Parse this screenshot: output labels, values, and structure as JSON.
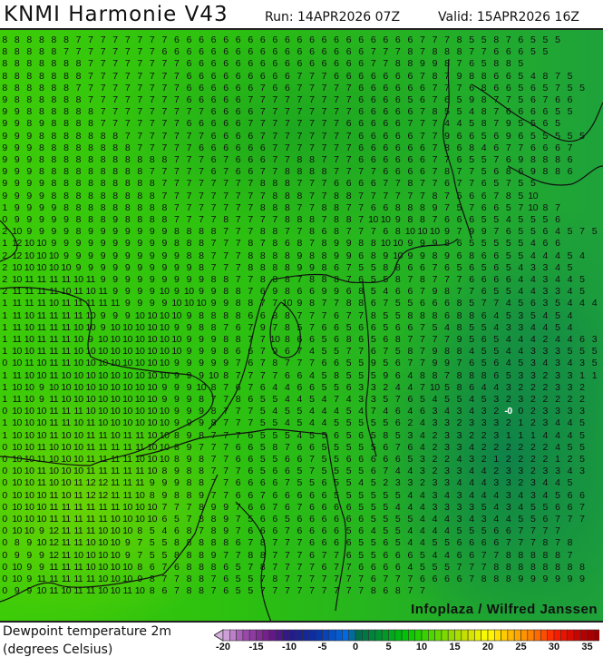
{
  "header": {
    "title": "KNMI Harmonie V43",
    "run": "Run: 14APR2026 07Z",
    "valid": "Valid: 15APR2026 16Z"
  },
  "map": {
    "watermark": "Infoplaza / Wilfred Janssen",
    "highlighted_value": "-0",
    "grid_rows": [
      "8 8 8 8 8 8 7 7 7 7 7 7 7 7 6 6 6 6 6 6 6 6 6 6 6 6 6 6 6 6 6 6 6 6 7 7 7 8 5 5 8 7 6 5 5 5",
      "8 8 8 8 8 7 7 7 7 7 7 7 7 6 6 6 6 6 6 6 6 6 6 6 6 6 6 6 6 6 7 7 7 8 7 8 8 8 7 7 6 6 6 5 5",
      "8 8 8 8 8 8 8 7 7 7 7 7 7 7 7 6 6 6 6 6 6 6 6 6 6 6 6 6 6 6 7 7 8 8 9 9 8 7 6 5 8 8 5",
      "8 8 8 8 8 8 8 7 7 7 7 7 7 7 7 6 6 6 6 6 6 6 6 6 7 7 7 6 6 6 6 6 6 6 7 8 7 9 8 8 6 6 5 4 8 7 5",
      "8 8 8 8 8 8 7 7 7 7 7 7 7 7 7 6 6 6 6 6 6 7 6 6 7 7 7 7 7 6 6 6 6 6 6 7 7 7 6 8 6 6 5 6 5 7 5 5",
      "9 8 8 8 8 8 8 7 7 7 7 7 7 7 7 6 6 6 6 6 7 7 7 7 7 7 7 7 7 6 6 6 6 5 6 7 6 5 9 8 7 7 5 6 7 6 6",
      "9 9 8 8 8 8 8 8 7 7 7 7 7 7 7 7 7 6 6 6 6 7 7 7 7 7 7 7 7 6 6 6 6 6 7 8 5 5 4 8 7 6 6 6 6 5 5",
      "9 9 8 9 8 8 8 8 7 7 7 7 7 7 7 6 6 6 6 6 7 7 7 7 7 7 7 7 6 6 6 6 6 7 7 7 4 4 5 8 7 9 5 5 6 5",
      "9 9 9 8 8 8 8 8 8 8 7 7 7 7 7 7 7 6 6 6 6 7 7 7 7 7 7 7 7 6 6 6 6 6 7 7 9 6 6 5 6 9 6 5 5 5 5 5",
      "9 9 9 8 8 8 8 8 8 8 8 7 7 7 7 7 6 6 6 6 6 6 7 7 7 7 7 7 7 6 6 6 6 6 6 7 8 6 8 4 6 7 7 6 6 6 7",
      "9 9 9 8 8 8 8 8 8 8 8 8 8 8 7 7 7 6 7 6 6 6 7 7 8 8 7 7 7 6 6 6 6 6 6 7 7 6 5 5 7 6 9 8 8 8 6",
      "9 9 9 8 8 8 8 8 8 8 8 8 7 7 7 7 7 6 7 6 6 7 7 8 8 8 8 7 7 7 7 6 6 6 6 7 8 7 7 5 6 8 6 9 8 8 6",
      "9 9 9 9 8 8 8 8 8 8 8 8 8 7 7 7 7 7 7 7 7 8 8 8 7 7 7 6 6 6 6 7 7 8 7 7 6 7 7 6 5 7 5 5",
      "9 9 9 9 8 8 8 8 8 8 8 8 8 7 7 7 7 7 7 7 7 7 8 8 8 7 7 8 8 7 7 7 7 7 7 8 7 5 6 6 7 8 5 10",
      "1 9 9 9 9 8 8 8 8 8 8 8 8 8 7 7 7 7 7 7 7 8 8 8 7 7 8 8 7 7 6 6 8 8 8 9 7 5 7 6 6 5 7 10 8 7",
      "0 9 9 9 9 9 8 8 8 9 8 8 8 8 7 7 7 7 8 7 7 7 7 8 8 8 7 8 8 7 10 10 9 8 8 7 6 6 6 5 5 4 5 5 5 6",
      "2 10 9 9 9 9 8 9 9 9 9 9 9 9 8 8 8 8 7 7 7 8 8 7 7 8 6 8 7 7 7 6 8 10 10 10 9 7 9 9 7 6 5 5 6 4 5 7 5 5",
      "1 12 10 10 9 9 9 9 9 9 9 9 9 9 8 8 8 7 7 7 8 7 8 6 8 7 8 9 9 8 8 10 10 9 9 9 8 6 5 5 5 5 5 4 6 6",
      "2 12 10 10 10 9 9 9 9 9 9 9 9 9 9 8 8 7 7 7 8 8 8 8 9 8 8 9 9 6 8 9 10 9 9 8 9 6 8 6 6 5 5 4 4 4 5 4",
      "2 10 10 10 10 10 9 9 9 9 9 9 9 9 9 9 8 7 7 7 8 8 8 8 9 9 8 6 7 5 5 8 8 6 6 7 6 5 6 5 6 5 4 3 3 4 5",
      "2 10 11 11 11 11 10 11 9 9 9 9 9 9 9 9 9 8 8 7 7 8 8 8 7 8 8 8 7 6 5 5 8 7 8 7 7 7 6 6 6 6 4 4 3 4 4 5",
      "2 11 11 11 11 10 11 10 11 9 9 9 9 10 9 10 9 9 8 8 7 6 9 8 6 6 9 9 6 8 5 4 6 6 7 9 8 7 7 6 5 5 4 4 3 3 4 5",
      "1 11 11 11 10 11 11 11 11 11 9 9 9 9 10 10 10 9 9 8 8 7 7 10 9 8 7 7 8 8 6 7 5 5 6 6 6 8 5 7 7 4 5 6 3 5 4 4 4 3",
      "1 11 10 11 11 11 11 10 9 9 9 10 10 10 10 9 8 8 8 8 6 6 8 8 7 7 7 6 7 7 8 5 5 8 8 8 6 8 8 6 4 5 3 5 4 5 4",
      "1 11 10 11 11 11 10 10 9 10 10 10 10 10 9 9 8 8 7 6 7 9 7 8 5 7 6 6 5 6 6 5 6 6 7 5 4 8 5 5 4 3 3 4 4 5 4",
      "1 11 10 11 11 11 10 9 10 10 10 10 10 10 10 9 9 9 8 8 7 7 10 8 6 6 5 6 8 6 5 6 8 7 7 7 7 9 5 6 5 4 4 4 2 4 4 6 3",
      "1 10 10 11 11 11 10 10 10 10 10 10 10 10 10 9 9 9 8 6 6 7 9 6 7 4 5 5 7 7 6 7 5 8 7 9 8 8 4 5 5 4 4 3 3 3 5 5 5",
      "0 10 11 10 11 11 10 10 10 10 10 10 10 10 9 9 9 9 9 7 6 7 8 7 7 7 6 6 5 5 9 5 6 7 7 9 9 7 6 5 6 4 5 3 4 3 4 3 5",
      "1 11 10 10 11 10 10 10 10 10 10 10 10 10 9 9 9 10 8 7 7 7 7 6 6 4 5 8 5 5 5 9 6 4 8 8 7 8 8 8 6 5 3 3 2 3 3 1 1 3",
      "1 10 10 9 10 10 10 10 10 10 10 10 10 9 9 9 10 8 7 6 7 6 4 4 6 6 5 5 6 3 3 2 4 4 7 10 5 8 6 4 4 3 2 2 2 3 3 2",
      "1 11 10 9 11 10 10 10 10 10 10 10 10 9 9 9 8 7 7 8 6 5 5 4 4 5 4 7 4 3 3 5 7 6 5 4 5 5 4 5 3 2 3 2 2 2 2 2",
      "0 10 10 10 11 11 11 10 10 10 10 10 10 10 9 9 9 8 7 7 7 5 4 5 5 4 4 4 5 4 7 4 6 4 6 3 4 3 4 3 2 -0 0 2 3 3 3 3",
      "1 10 10 10 11 11 10 11 10 10 10 10 10 10 9 9 9 8 7 7 7 5 5 4 5 4 4 5 5 5 5 5 6 2 4 3 3 2 3 3 3 2 1 2 3 4 4 5",
      "1 10 10 10 11 10 10 11 11 10 11 11 10 10 8 9 8 7 7 7 6 5 5 5 4 5 5 6 5 6 5 8 5 3 4 2 3 3 2 2 3 1 1 1 4 4 4 5",
      "0 10 10 11 10 10 10 11 11 11 11 11 10 10 8 9 7 7 7 6 6 5 8 7 6 6 5 5 5 5 5 6 7 6 4 2 3 3 4 2 2 2 2 2 2 4 5 5",
      "0 10 10 11 10 10 10 11 11 11 11 10 10 10 8 9 8 7 7 6 6 5 5 6 6 7 5 5 6 6 6 6 6 5 3 2 2 4 3 2 1 2 2 2 2 1 2 5",
      "0 10 10 11 10 10 10 11 11 11 11 11 10 8 9 8 8 7 7 7 6 5 6 6 5 7 5 5 5 5 6 7 4 4 3 2 3 3 4 4 2 3 3 2 3 3 4 3",
      "0 10 10 11 10 10 11 12 12 11 11 11 9 9 9 8 8 7 7 6 6 6 6 7 5 5 6 5 5 4 5 2 3 3 2 3 3 4 4 4 3 3 2 3 4 4 5",
      "0 10 10 10 11 10 11 12 12 11 11 10 8 9 8 8 9 7 7 6 6 7 6 6 6 6 6 5 5 5 5 5 5 4 4 3 4 3 4 4 4 3 4 3 4 5 6 6",
      "0 10 10 10 11 11 11 11 11 11 10 10 10 7 7 7 8 9 9 7 6 6 7 6 7 6 6 6 6 5 5 5 4 4 4 3 3 3 3 5 4 3 4 5 5 6 6 7",
      "0 10 10 10 11 11 11 11 11 10 10 10 10 6 5 7 8 8 9 7 5 6 6 5 6 6 6 6 6 6 5 5 5 5 4 4 4 3 4 3 4 4 5 5 6 7 7 7",
      "0 10 10 9 12 11 11 11 10 10 10 8 5 4 6 8 7 8 9 7 6 6 6 7 6 6 6 6 5 6 4 5 5 4 4 4 4 5 5 5 6 6 7 7 7 7",
      "0 8 9 10 12 11 11 10 10 10 9 7 5 5 8 8 8 8 8 6 7 8 7 7 7 6 6 6 6 5 5 6 5 4 4 5 5 6 6 6 6 7 7 7 8 7 8",
      "0 9 9 9 12 11 10 10 10 10 9 7 5 5 8 8 8 9 7 7 8 8 7 7 7 6 7 7 6 5 5 6 6 6 5 4 4 6 6 7 7 8 8 8 8 8 7",
      "0 10 9 9 11 11 11 10 10 10 10 8 6 7 6 8 8 8 6 5 7 8 7 7 7 7 6 7 7 6 6 6 6 4 5 5 5 7 7 7 8 8 8 8 8 8 8 8",
      "0 10 9 11 11 11 11 11 10 10 10 9 8 7 7 8 8 7 6 5 5 7 8 7 7 7 7 7 7 7 6 7 7 7 6 6 6 6 7 8 8 8 9 9 9 9 9 9",
      "0 9 9 10 11 10 11 11 10 10 11 10 8 6 7 8 8 7 6 5 5 7 7 7 7 7 7 7 7 7 8 6 8 7 7"
    ]
  },
  "legend": {
    "title_line1": "Dewpoint temperature 2m",
    "title_line2": "(degrees Celsius)",
    "min": -20,
    "max": 37,
    "ticks": [
      "-20",
      "-15",
      "-10",
      "-5",
      "0",
      "5",
      "10",
      "15",
      "20",
      "25",
      "30",
      "35"
    ],
    "color_stops": [
      [
        -20,
        "#d8b0e0"
      ],
      [
        -17,
        "#a050b0"
      ],
      [
        -13,
        "#701888"
      ],
      [
        -10,
        "#281888"
      ],
      [
        -6,
        "#0830a8"
      ],
      [
        -1,
        "#0070e8"
      ],
      [
        0,
        "#006850"
      ],
      [
        3,
        "#008838"
      ],
      [
        8,
        "#00c800"
      ],
      [
        12,
        "#58d800"
      ],
      [
        17,
        "#d0e000"
      ],
      [
        20,
        "#ffff00"
      ],
      [
        23,
        "#ffc000"
      ],
      [
        27,
        "#ff7800"
      ],
      [
        30,
        "#ff2000"
      ],
      [
        34,
        "#c00000"
      ],
      [
        37,
        "#900000"
      ]
    ]
  }
}
